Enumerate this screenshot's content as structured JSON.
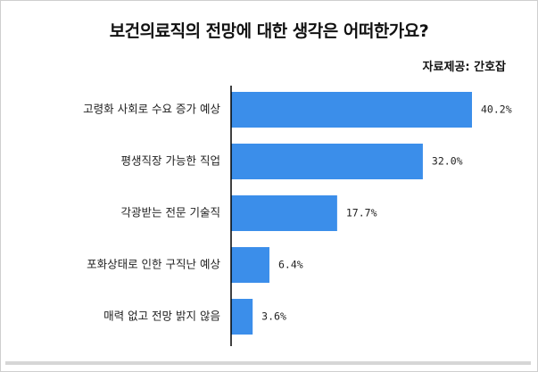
{
  "chart_data": {
    "type": "bar",
    "orientation": "horizontal",
    "title": "보건의료직의 전망에 대한 생각은 어떠한가요?",
    "source": "자료제공: 간호잡",
    "categories": [
      "고령화 사회로 수요 증가 예상",
      "평생직장 가능한 직업",
      "각광받는 전문 기술직",
      "포화상태로 인한 구직난 예상",
      "매력 없고 전망 밝지 않음"
    ],
    "values": [
      40.2,
      32.0,
      17.7,
      6.4,
      3.6
    ],
    "value_labels": [
      "40.2%",
      "32.0%",
      "17.7%",
      "6.4%",
      "3.6%"
    ],
    "xlim": [
      0,
      40.2
    ],
    "bar_color": "#3b8eea",
    "grid": false,
    "legend": "none"
  }
}
